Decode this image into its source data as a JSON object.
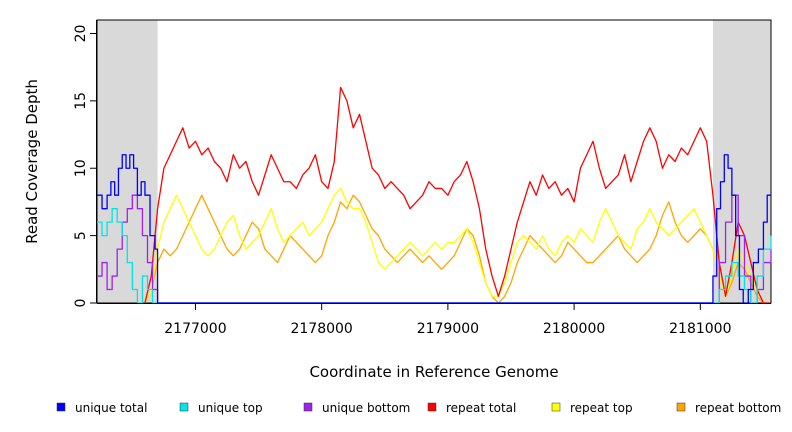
{
  "chart_data": {
    "type": "line",
    "title": "",
    "xlabel": "Coordinate in Reference Genome",
    "ylabel": "Read Coverage Depth",
    "xlim": [
      2176220,
      2181560
    ],
    "ylim": [
      0,
      21
    ],
    "x_ticks": [
      2177000,
      2178000,
      2179000,
      2180000,
      2181000
    ],
    "y_ticks": [
      0,
      5,
      10,
      15,
      20
    ],
    "grid": false,
    "legend_position": "bottom",
    "masked_regions": [
      [
        2176220,
        2176700
      ],
      [
        2181100,
        2181560
      ]
    ],
    "series": [
      {
        "name": "unique total",
        "color": "#0000ff",
        "step": true,
        "x": [
          2176220,
          2176260,
          2176300,
          2176330,
          2176360,
          2176390,
          2176420,
          2176450,
          2176480,
          2176510,
          2176540,
          2176570,
          2176600,
          2176640,
          2176680,
          2176700,
          2181100,
          2181130,
          2181160,
          2181190,
          2181220,
          2181250,
          2181280,
          2181310,
          2181340,
          2181380,
          2181420,
          2181460,
          2181500,
          2181530,
          2181560
        ],
        "y": [
          8,
          7,
          8,
          9,
          8,
          10,
          11,
          10,
          11,
          10,
          8,
          9,
          8,
          5,
          4,
          0,
          2,
          7,
          9,
          11,
          10,
          8,
          5,
          1,
          0,
          1,
          3,
          4,
          6,
          8,
          8
        ]
      },
      {
        "name": "unique top",
        "color": "#00e5e5",
        "step": true,
        "x": [
          2176220,
          2176260,
          2176300,
          2176340,
          2176380,
          2176420,
          2176460,
          2176500,
          2176540,
          2176580,
          2176620,
          2176660,
          2176700,
          2181100,
          2181150,
          2181200,
          2181250,
          2181300,
          2181350,
          2181400,
          2181450,
          2181500,
          2181560
        ],
        "y": [
          6,
          5,
          6,
          7,
          6,
          5,
          3,
          1,
          0,
          2,
          1,
          0,
          0,
          0,
          1,
          2,
          3,
          2,
          1,
          0,
          2,
          4,
          5
        ]
      },
      {
        "name": "unique bottom",
        "color": "#a020f0",
        "step": true,
        "x": [
          2176220,
          2176260,
          2176300,
          2176340,
          2176380,
          2176420,
          2176460,
          2176500,
          2176540,
          2176580,
          2176620,
          2176660,
          2176700,
          2181100,
          2181150,
          2181200,
          2181250,
          2181300,
          2181350,
          2181400,
          2181450,
          2181500,
          2181560
        ],
        "y": [
          2,
          3,
          1,
          2,
          4,
          6,
          7,
          8,
          7,
          5,
          3,
          1,
          0,
          0,
          3,
          6,
          8,
          5,
          2,
          0,
          1,
          3,
          4
        ]
      },
      {
        "name": "repeat total",
        "color": "#ff0000",
        "step": false,
        "x": [
          2176600,
          2176650,
          2176700,
          2176750,
          2176800,
          2176850,
          2176900,
          2176950,
          2177000,
          2177050,
          2177100,
          2177150,
          2177200,
          2177250,
          2177300,
          2177350,
          2177400,
          2177450,
          2177500,
          2177550,
          2177600,
          2177650,
          2177700,
          2177750,
          2177800,
          2177850,
          2177900,
          2177950,
          2178000,
          2178050,
          2178100,
          2178150,
          2178200,
          2178250,
          2178300,
          2178350,
          2178400,
          2178450,
          2178500,
          2178550,
          2178600,
          2178650,
          2178700,
          2178750,
          2178800,
          2178850,
          2178900,
          2178950,
          2179000,
          2179050,
          2179100,
          2179150,
          2179200,
          2179250,
          2179300,
          2179350,
          2179400,
          2179450,
          2179500,
          2179550,
          2179600,
          2179650,
          2179700,
          2179750,
          2179800,
          2179850,
          2179900,
          2179950,
          2180000,
          2180050,
          2180100,
          2180150,
          2180200,
          2180250,
          2180300,
          2180350,
          2180400,
          2180450,
          2180500,
          2180550,
          2180600,
          2180650,
          2180700,
          2180750,
          2180800,
          2180850,
          2180900,
          2180950,
          2181000,
          2181050,
          2181100,
          2181150,
          2181200,
          2181250,
          2181300,
          2181350,
          2181400,
          2181450,
          2181500,
          2181550
        ],
        "y": [
          0,
          2,
          7,
          10,
          11,
          12,
          13,
          11.5,
          12,
          11,
          11.5,
          10.5,
          10,
          9,
          11,
          10,
          10.5,
          9,
          8,
          9.5,
          11,
          10,
          9,
          9,
          8.5,
          9.5,
          10,
          11,
          9,
          8.5,
          10.5,
          16,
          15,
          13,
          14,
          12,
          10,
          9.5,
          8.5,
          9,
          8.5,
          8,
          7,
          7.5,
          8,
          9,
          8.5,
          8.5,
          8,
          9,
          9.5,
          10.5,
          9,
          7,
          4,
          2,
          0.5,
          2,
          4,
          6,
          7.5,
          9,
          8,
          9.5,
          8.5,
          9,
          8,
          8.5,
          7.5,
          10,
          11,
          12,
          10,
          8.5,
          9,
          9.5,
          11,
          9,
          10.5,
          12,
          13,
          12,
          10,
          11,
          10.5,
          11.5,
          11,
          12,
          13,
          12,
          8,
          3,
          0.5,
          3,
          6,
          5,
          3,
          1,
          0,
          0
        ]
      },
      {
        "name": "repeat top",
        "color": "#ffff00",
        "step": false,
        "x": [
          2176600,
          2176650,
          2176700,
          2176750,
          2176800,
          2176850,
          2176900,
          2176950,
          2177000,
          2177050,
          2177100,
          2177150,
          2177200,
          2177250,
          2177300,
          2177350,
          2177400,
          2177450,
          2177500,
          2177550,
          2177600,
          2177650,
          2177700,
          2177750,
          2177800,
          2177850,
          2177900,
          2177950,
          2178000,
          2178050,
          2178100,
          2178150,
          2178200,
          2178250,
          2178300,
          2178350,
          2178400,
          2178450,
          2178500,
          2178550,
          2178600,
          2178650,
          2178700,
          2178750,
          2178800,
          2178850,
          2178900,
          2178950,
          2179000,
          2179050,
          2179100,
          2179150,
          2179200,
          2179250,
          2179300,
          2179350,
          2179400,
          2179450,
          2179500,
          2179550,
          2179600,
          2179650,
          2179700,
          2179750,
          2179800,
          2179850,
          2179900,
          2179950,
          2180000,
          2180050,
          2180100,
          2180150,
          2180200,
          2180250,
          2180300,
          2180350,
          2180400,
          2180450,
          2180500,
          2180550,
          2180600,
          2180650,
          2180700,
          2180750,
          2180800,
          2180850,
          2180900,
          2180950,
          2181000,
          2181050,
          2181100,
          2181150,
          2181200,
          2181250,
          2181300,
          2181350,
          2181400,
          2181450,
          2181500,
          2181550
        ],
        "y": [
          0,
          1,
          4,
          6,
          7,
          8,
          7,
          6,
          5,
          4,
          3.5,
          4,
          5,
          6,
          6.5,
          5,
          4,
          4.5,
          5,
          6,
          7,
          5.5,
          4.5,
          5,
          5.5,
          6,
          5,
          5.5,
          6,
          7,
          8,
          8.5,
          7.5,
          7,
          7,
          6,
          4.5,
          3,
          2.5,
          3,
          3.5,
          4,
          4.5,
          4,
          3.5,
          4,
          4.5,
          4,
          4.5,
          4.5,
          5,
          5.5,
          4.5,
          3,
          1.5,
          0.5,
          0.5,
          1.5,
          3,
          4.5,
          5,
          4.5,
          4,
          5,
          4,
          3.5,
          4.5,
          5,
          4.5,
          5.5,
          5,
          4.5,
          6,
          7,
          6,
          5,
          4.5,
          4,
          5.5,
          6,
          7,
          6,
          5.5,
          5,
          5.5,
          6,
          6.5,
          7,
          6,
          5,
          4,
          2,
          0.5,
          2,
          4,
          3,
          2,
          1,
          0,
          0
        ]
      },
      {
        "name": "repeat bottom",
        "color": "#ffa500",
        "step": false,
        "x": [
          2176600,
          2176650,
          2176700,
          2176750,
          2176800,
          2176850,
          2176900,
          2176950,
          2177000,
          2177050,
          2177100,
          2177150,
          2177200,
          2177250,
          2177300,
          2177350,
          2177400,
          2177450,
          2177500,
          2177550,
          2177600,
          2177650,
          2177700,
          2177750,
          2177800,
          2177850,
          2177900,
          2177950,
          2178000,
          2178050,
          2178100,
          2178150,
          2178200,
          2178250,
          2178300,
          2178350,
          2178400,
          2178450,
          2178500,
          2178550,
          2178600,
          2178650,
          2178700,
          2178750,
          2178800,
          2178850,
          2178900,
          2178950,
          2179000,
          2179050,
          2179100,
          2179150,
          2179200,
          2179250,
          2179300,
          2179350,
          2179400,
          2179450,
          2179500,
          2179550,
          2179600,
          2179650,
          2179700,
          2179750,
          2179800,
          2179850,
          2179900,
          2179950,
          2180000,
          2180050,
          2180100,
          2180150,
          2180200,
          2180250,
          2180300,
          2180350,
          2180400,
          2180450,
          2180500,
          2180550,
          2180600,
          2180650,
          2180700,
          2180750,
          2180800,
          2180850,
          2180900,
          2180950,
          2181000,
          2181050,
          2181100,
          2181150,
          2181200,
          2181250,
          2181300,
          2181350,
          2181400,
          2181450,
          2181500,
          2181550
        ],
        "y": [
          0,
          1,
          3,
          4,
          3.5,
          4,
          5,
          6,
          7,
          8,
          7,
          6,
          5,
          4,
          3.5,
          4,
          5,
          6,
          5.5,
          4,
          3.5,
          3,
          4,
          5,
          4.5,
          4,
          3.5,
          3,
          3.5,
          5,
          6,
          7.5,
          7,
          8,
          7.5,
          6.5,
          5.5,
          5,
          4,
          3.5,
          3,
          3.5,
          4,
          3.5,
          3,
          3.5,
          3,
          2.5,
          3,
          3.5,
          4.5,
          5.5,
          5,
          3.5,
          1.5,
          0.5,
          0,
          0.5,
          1.5,
          3,
          4,
          5,
          4.5,
          4,
          3.5,
          3,
          3.5,
          4.5,
          4,
          3.5,
          3,
          3,
          3.5,
          4,
          4.5,
          5,
          4,
          3.5,
          3,
          3.5,
          4,
          5,
          6.5,
          7.5,
          6,
          5,
          4.5,
          5,
          5.5,
          5,
          4,
          2,
          0.5,
          1.5,
          3,
          2.5,
          1.5,
          0.5,
          0,
          0
        ]
      }
    ]
  }
}
